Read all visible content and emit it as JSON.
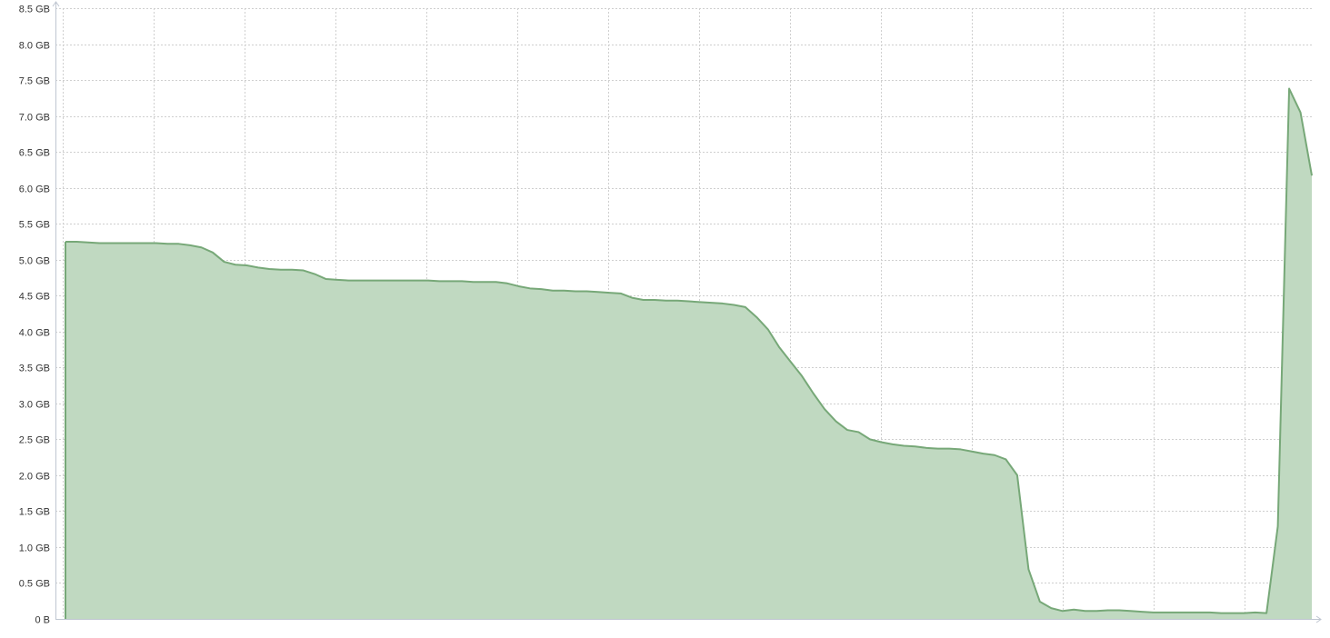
{
  "chart_data": {
    "type": "area",
    "title": "",
    "xlabel": "",
    "ylabel": "",
    "ylim": [
      0,
      8.5
    ],
    "yticks": [
      {
        "value": 0,
        "label": "0 B"
      },
      {
        "value": 0.5,
        "label": "0.5 GB"
      },
      {
        "value": 1.0,
        "label": "1.0 GB"
      },
      {
        "value": 1.5,
        "label": "1.5 GB"
      },
      {
        "value": 2.0,
        "label": "2.0 GB"
      },
      {
        "value": 2.5,
        "label": "2.5 GB"
      },
      {
        "value": 3.0,
        "label": "3.0 GB"
      },
      {
        "value": 3.5,
        "label": "3.5 GB"
      },
      {
        "value": 4.0,
        "label": "4.0 GB"
      },
      {
        "value": 4.5,
        "label": "4.5 GB"
      },
      {
        "value": 5.0,
        "label": "5.0 GB"
      },
      {
        "value": 5.5,
        "label": "5.5 GB"
      },
      {
        "value": 6.0,
        "label": "6.0 GB"
      },
      {
        "value": 6.5,
        "label": "6.5 GB"
      },
      {
        "value": 7.0,
        "label": "7.0 GB"
      },
      {
        "value": 7.5,
        "label": "7.5 GB"
      },
      {
        "value": 8.0,
        "label": "8.0 GB"
      },
      {
        "value": 8.5,
        "label": "8.5 GB"
      }
    ],
    "grid": true,
    "x_gridlines": 14,
    "legend": "none",
    "colors": {
      "line": "#77a878",
      "fill": "#c0d9c1",
      "grid": "#cfcfcf",
      "axis": "#bfc6d1"
    },
    "series": [
      {
        "values": [
          5.25,
          5.25,
          5.24,
          5.23,
          5.23,
          5.23,
          5.23,
          5.23,
          5.23,
          5.22,
          5.22,
          5.2,
          5.17,
          5.1,
          4.97,
          4.93,
          4.92,
          4.89,
          4.87,
          4.86,
          4.86,
          4.85,
          4.8,
          4.73,
          4.72,
          4.71,
          4.71,
          4.71,
          4.71,
          4.71,
          4.71,
          4.71,
          4.71,
          4.7,
          4.7,
          4.7,
          4.69,
          4.69,
          4.69,
          4.67,
          4.63,
          4.6,
          4.59,
          4.57,
          4.57,
          4.56,
          4.56,
          4.55,
          4.54,
          4.53,
          4.47,
          4.44,
          4.44,
          4.43,
          4.43,
          4.42,
          4.41,
          4.4,
          4.39,
          4.37,
          4.34,
          4.2,
          4.03,
          3.78,
          3.58,
          3.38,
          3.14,
          2.92,
          2.75,
          2.63,
          2.6,
          2.5,
          2.46,
          2.43,
          2.41,
          2.4,
          2.38,
          2.37,
          2.37,
          2.36,
          2.33,
          2.3,
          2.28,
          2.22,
          2.0,
          0.69,
          0.24,
          0.15,
          0.11,
          0.13,
          0.11,
          0.11,
          0.12,
          0.12,
          0.11,
          0.1,
          0.09,
          0.09,
          0.09,
          0.09,
          0.09,
          0.09,
          0.08,
          0.08,
          0.08,
          0.09,
          0.08,
          1.29,
          7.38,
          7.05,
          6.17
        ]
      }
    ]
  }
}
